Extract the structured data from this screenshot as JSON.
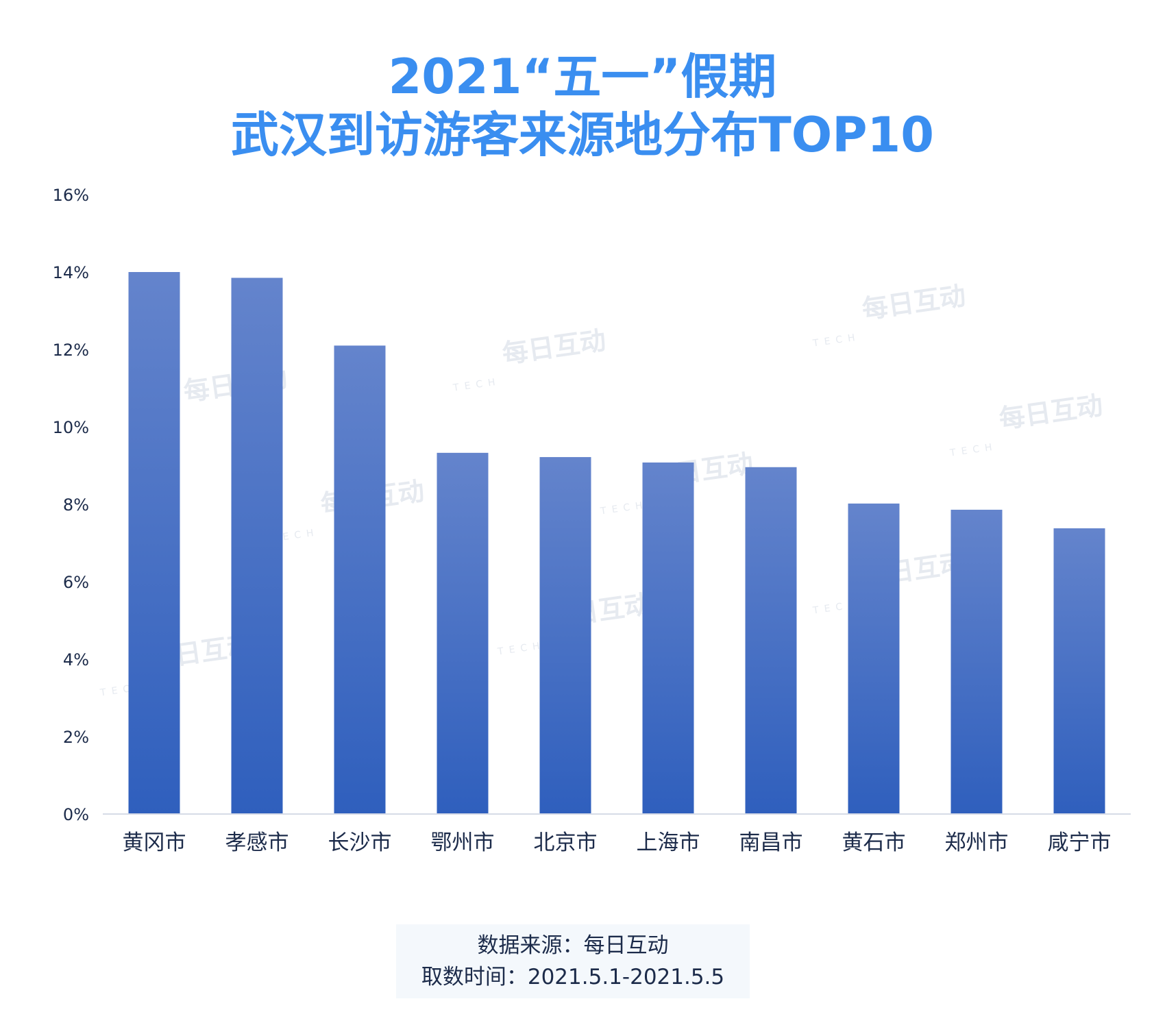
{
  "title": {
    "line1": "2021“五一”假期",
    "line2": "武汉到访游客来源地分布TOP10"
  },
  "footer": {
    "source": "数据来源：每日互动",
    "period": "取数时间：2021.5.1-2021.5.5"
  },
  "watermark": {
    "text": "每日互动",
    "sub": "TECH"
  },
  "colors": {
    "title": "#3a8ef0",
    "bar_top": "#6484cc",
    "bar_bottom": "#2f5fbd",
    "axis_text": "#1c2b4a"
  },
  "chart_data": {
    "type": "bar",
    "title": "2021“五一”假期 武汉到访游客来源地分布TOP10",
    "xlabel": "",
    "ylabel": "",
    "ylim": [
      0,
      16
    ],
    "y_ticks": [
      "0%",
      "2%",
      "4%",
      "6%",
      "8%",
      "10%",
      "12%",
      "14%",
      "16%"
    ],
    "grid": false,
    "categories": [
      "黄冈市",
      "孝感市",
      "长沙市",
      "鄂州市",
      "北京市",
      "上海市",
      "南昌市",
      "黄石市",
      "郑州市",
      "咸宁市"
    ],
    "values": [
      14.0,
      13.85,
      12.1,
      9.33,
      9.22,
      9.08,
      8.96,
      8.02,
      7.86,
      7.38
    ],
    "unit": "%"
  }
}
